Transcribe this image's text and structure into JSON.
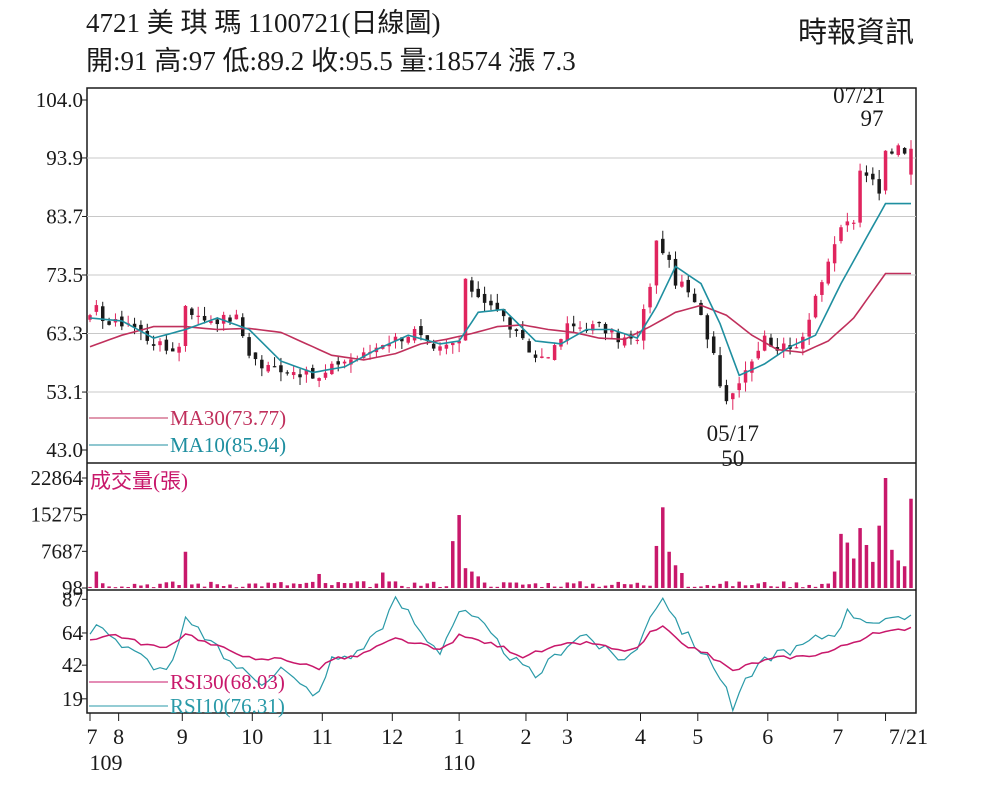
{
  "header": {
    "title": "4721  美 琪 瑪 1100721(日線圖)",
    "stats": "開:91 高:97 低:89.2 收:95.5 量:18574 漲 7.3",
    "source": "時報資訊"
  },
  "colors": {
    "up": "#e0245e",
    "down": "#1a1a1a",
    "ma30": "#c0305c",
    "ma10": "#1f8fa0",
    "volume": "#c8186b",
    "rsi30": "#c8186b",
    "rsi10": "#2a9aa8",
    "grid": "#c8c8c8"
  },
  "chart_data": [
    {
      "type": "candlestick",
      "title": "4721  美 琪 瑪 1100721(日線圖)",
      "y_ticks": [
        "104.0",
        "93.9",
        "83.7",
        "73.5",
        "63.3",
        "53.1",
        "43.0"
      ],
      "ylim": [
        43.0,
        104.0
      ],
      "x_ticks": [
        {
          "label": "7",
          "sub": "109",
          "t": 0
        },
        {
          "label": "8",
          "t": 4.5
        },
        {
          "label": "9",
          "t": 14.5
        },
        {
          "label": "10",
          "t": 25.5
        },
        {
          "label": "11",
          "t": 36.5
        },
        {
          "label": "12",
          "t": 47.5
        },
        {
          "label": "1",
          "sub": "110",
          "t": 58
        },
        {
          "label": "2",
          "t": 68.5
        },
        {
          "label": "3",
          "t": 75
        },
        {
          "label": "4",
          "t": 86.5
        },
        {
          "label": "5",
          "t": 95.5
        },
        {
          "label": "6",
          "t": 106.5
        },
        {
          "label": "7",
          "t": 117.5
        },
        {
          "label": "7/21",
          "t": 125
        }
      ],
      "annotations": [
        {
          "date": "07/21",
          "value": "97",
          "t": 125,
          "pos": "top"
        },
        {
          "date": "05/17",
          "value": "50",
          "t": 101,
          "pos": "bottom"
        }
      ],
      "legend": [
        {
          "label": "MA30(73.77)",
          "series": "ma30"
        },
        {
          "label": "MA10(85.94)",
          "series": "ma10"
        }
      ],
      "close_anchors": [
        [
          0,
          65.8
        ],
        [
          1,
          67.5
        ],
        [
          3,
          65
        ],
        [
          6,
          65.3
        ],
        [
          9,
          62.5
        ],
        [
          12,
          60.5
        ],
        [
          14,
          61
        ],
        [
          15,
          68.5
        ],
        [
          17,
          66
        ],
        [
          20,
          65.8
        ],
        [
          23,
          66
        ],
        [
          25,
          60
        ],
        [
          27,
          57.5
        ],
        [
          30,
          57.3
        ],
        [
          33,
          56.5
        ],
        [
          36,
          55.3
        ],
        [
          39,
          58.3
        ],
        [
          43,
          59.5
        ],
        [
          46,
          61.8
        ],
        [
          49,
          62.7
        ],
        [
          51,
          63.7
        ],
        [
          54,
          60
        ],
        [
          58,
          62
        ],
        [
          59,
          72
        ],
        [
          61,
          70
        ],
        [
          63,
          68.5
        ],
        [
          65,
          66
        ],
        [
          67,
          63
        ],
        [
          70,
          59
        ],
        [
          73,
          60.5
        ],
        [
          75,
          64.5
        ],
        [
          78,
          64.5
        ],
        [
          80,
          64.5
        ],
        [
          83,
          62.5
        ],
        [
          86,
          62
        ],
        [
          88,
          72
        ],
        [
          89,
          79
        ],
        [
          90,
          78
        ],
        [
          92,
          72.5
        ],
        [
          94,
          70.5
        ],
        [
          96,
          66
        ],
        [
          98,
          60
        ],
        [
          99,
          55
        ],
        [
          100,
          52
        ],
        [
          101,
          53
        ],
        [
          102,
          55.5
        ],
        [
          104,
          59
        ],
        [
          106,
          62.5
        ],
        [
          108,
          61
        ],
        [
          110,
          60.5
        ],
        [
          112,
          63
        ],
        [
          114,
          70
        ],
        [
          116,
          75
        ],
        [
          118,
          82
        ],
        [
          120,
          83
        ],
        [
          121,
          91
        ],
        [
          123,
          90
        ],
        [
          124,
          88.2
        ],
        [
          125,
          95.5
        ]
      ],
      "ma30_anchors": [
        [
          0,
          61
        ],
        [
          5,
          63
        ],
        [
          10,
          64.5
        ],
        [
          15,
          64.5
        ],
        [
          20,
          64
        ],
        [
          25,
          64.2
        ],
        [
          30,
          63.5
        ],
        [
          35,
          61
        ],
        [
          38,
          59.5
        ],
        [
          43,
          58.7
        ],
        [
          48,
          59.8
        ],
        [
          52,
          61.5
        ],
        [
          56,
          62.3
        ],
        [
          60,
          63.3
        ],
        [
          64,
          64.5
        ],
        [
          68,
          64.8
        ],
        [
          72,
          64
        ],
        [
          76,
          63.5
        ],
        [
          80,
          62.5
        ],
        [
          84,
          62.3
        ],
        [
          88,
          64.5
        ],
        [
          92,
          67
        ],
        [
          96,
          68.2
        ],
        [
          100,
          66.5
        ],
        [
          104,
          63
        ],
        [
          108,
          60.5
        ],
        [
          112,
          60
        ],
        [
          116,
          62
        ],
        [
          120,
          66
        ],
        [
          125,
          73.77
        ]
      ],
      "ma10_anchors": [
        [
          0,
          66
        ],
        [
          5,
          65.5
        ],
        [
          10,
          62.5
        ],
        [
          15,
          64
        ],
        [
          20,
          66
        ],
        [
          25,
          64
        ],
        [
          30,
          58.5
        ],
        [
          35,
          56.5
        ],
        [
          40,
          57.5
        ],
        [
          45,
          60.5
        ],
        [
          50,
          63
        ],
        [
          55,
          61.5
        ],
        [
          58,
          62
        ],
        [
          61,
          67
        ],
        [
          65,
          67.5
        ],
        [
          70,
          62
        ],
        [
          74,
          61.5
        ],
        [
          78,
          64
        ],
        [
          82,
          64
        ],
        [
          86,
          62.5
        ],
        [
          89,
          68
        ],
        [
          92,
          75
        ],
        [
          96,
          72
        ],
        [
          99,
          65
        ],
        [
          102,
          56
        ],
        [
          106,
          58
        ],
        [
          110,
          61
        ],
        [
          114,
          63
        ],
        [
          118,
          72
        ],
        [
          122,
          80
        ],
        [
          125,
          85.94
        ]
      ],
      "high": 97,
      "low": 50
    },
    {
      "type": "bar",
      "title": "成交量(張)",
      "y_ticks": [
        "22864",
        "15275",
        "7687",
        "98"
      ],
      "ylim": [
        98,
        22864
      ],
      "spikes": [
        [
          1,
          3500
        ],
        [
          15,
          7600
        ],
        [
          36,
          3000
        ],
        [
          46,
          3300
        ],
        [
          57,
          9800
        ],
        [
          58,
          15200
        ],
        [
          59,
          4200
        ],
        [
          60,
          3500
        ],
        [
          61,
          2500
        ],
        [
          89,
          8800
        ],
        [
          90,
          16800
        ],
        [
          91,
          7600
        ],
        [
          92,
          4800
        ],
        [
          93,
          3200
        ],
        [
          117,
          3500
        ],
        [
          118,
          11300
        ],
        [
          119,
          9500
        ],
        [
          120,
          6200
        ],
        [
          121,
          12500
        ],
        [
          122,
          9000
        ],
        [
          123,
          5500
        ],
        [
          124,
          13000
        ],
        [
          125,
          22864
        ],
        [
          126,
          8000
        ],
        [
          127,
          5800
        ],
        [
          128,
          4600
        ],
        [
          129,
          18574
        ]
      ]
    },
    {
      "type": "line",
      "y_ticks": [
        "87",
        "64",
        "42",
        "19"
      ],
      "ylim": [
        10,
        92
      ],
      "legend": [
        {
          "label": "RSI30(68.03)",
          "series": "rsi30"
        },
        {
          "label": "RSI10(76.31)",
          "series": "rsi10"
        }
      ],
      "rsi30_anchors": [
        [
          0,
          60
        ],
        [
          4,
          63
        ],
        [
          8,
          57
        ],
        [
          12,
          53
        ],
        [
          15,
          64
        ],
        [
          19,
          56
        ],
        [
          23,
          51
        ],
        [
          26,
          45
        ],
        [
          30,
          47
        ],
        [
          33,
          43
        ],
        [
          36,
          40
        ],
        [
          38,
          46
        ],
        [
          42,
          48
        ],
        [
          46,
          56
        ],
        [
          48,
          60
        ],
        [
          52,
          56
        ],
        [
          55,
          52
        ],
        [
          58,
          62
        ],
        [
          61,
          59
        ],
        [
          65,
          54
        ],
        [
          68,
          48
        ],
        [
          72,
          53
        ],
        [
          76,
          57
        ],
        [
          79,
          57
        ],
        [
          83,
          52
        ],
        [
          86,
          53
        ],
        [
          88,
          64
        ],
        [
          90,
          68
        ],
        [
          93,
          56
        ],
        [
          96,
          52
        ],
        [
          99,
          44
        ],
        [
          101,
          38
        ],
        [
          104,
          43
        ],
        [
          108,
          47
        ],
        [
          112,
          48
        ],
        [
          116,
          51
        ],
        [
          120,
          58
        ],
        [
          123,
          63
        ],
        [
          126,
          65
        ],
        [
          129,
          68.03
        ]
      ],
      "rsi10_anchors": [
        [
          0,
          64
        ],
        [
          2,
          70
        ],
        [
          5,
          55
        ],
        [
          8,
          48
        ],
        [
          11,
          39
        ],
        [
          13,
          43
        ],
        [
          15,
          72
        ],
        [
          18,
          62
        ],
        [
          21,
          48
        ],
        [
          24,
          38
        ],
        [
          27,
          31
        ],
        [
          30,
          40
        ],
        [
          33,
          28
        ],
        [
          36,
          22
        ],
        [
          38,
          46
        ],
        [
          42,
          50
        ],
        [
          46,
          70
        ],
        [
          48,
          86
        ],
        [
          50,
          78
        ],
        [
          52,
          64
        ],
        [
          55,
          52
        ],
        [
          58,
          79
        ],
        [
          61,
          72
        ],
        [
          64,
          57
        ],
        [
          67,
          44
        ],
        [
          70,
          34
        ],
        [
          73,
          48
        ],
        [
          76,
          60
        ],
        [
          78,
          63
        ],
        [
          80,
          55
        ],
        [
          83,
          46
        ],
        [
          86,
          52
        ],
        [
          88,
          77
        ],
        [
          90,
          89
        ],
        [
          93,
          66
        ],
        [
          96,
          52
        ],
        [
          99,
          35
        ],
        [
          101,
          20
        ],
        [
          103,
          30
        ],
        [
          106,
          45
        ],
        [
          108,
          51
        ],
        [
          111,
          53
        ],
        [
          114,
          60
        ],
        [
          117,
          64
        ],
        [
          119,
          78
        ],
        [
          121,
          75
        ],
        [
          124,
          71
        ],
        [
          127,
          72
        ],
        [
          129,
          76.31
        ]
      ],
      "low_point": {
        "t": 101,
        "value": 11
      }
    }
  ]
}
